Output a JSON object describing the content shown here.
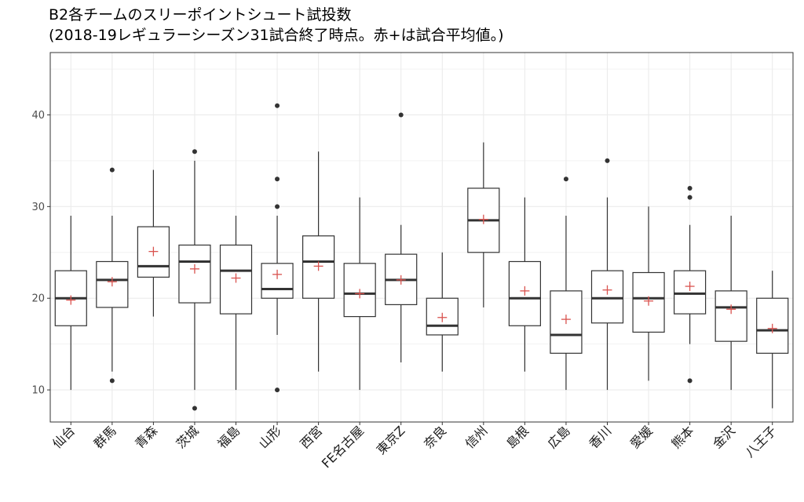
{
  "chart_data": {
    "type": "box",
    "title": "B2各チームのスリーポイントシュート試投数",
    "subtitle": "(2018-19レギュラーシーズン31試合終了時点。赤+は試合平均値。)",
    "xlabel": "",
    "ylabel": "",
    "ylim": [
      6.5,
      46.8
    ],
    "yticks": [
      10,
      20,
      30,
      40
    ],
    "grid": true,
    "colors": {
      "box": "#333333",
      "mean": "#d9534f",
      "grid": "#ebebeb",
      "border": "#333333"
    },
    "categories": [
      "仙台",
      "群馬",
      "青森",
      "茨城",
      "福島",
      "山形",
      "西宮",
      "FE名古屋",
      "東京Z",
      "奈良",
      "信州",
      "島根",
      "広島",
      "香川",
      "愛媛",
      "熊本",
      "金沢",
      "八王子"
    ],
    "boxes": [
      {
        "min": 10,
        "q1": 17,
        "median": 20,
        "q3": 23,
        "max": 29,
        "mean": 19.8,
        "outliers": []
      },
      {
        "min": 12,
        "q1": 19,
        "median": 22,
        "q3": 24,
        "max": 29,
        "mean": 21.8,
        "outliers": [
          34,
          11
        ]
      },
      {
        "min": 18,
        "q1": 22.3,
        "median": 23.5,
        "q3": 27.8,
        "max": 34,
        "mean": 25.1,
        "outliers": []
      },
      {
        "min": 10,
        "q1": 19.5,
        "median": 24,
        "q3": 25.8,
        "max": 35,
        "mean": 23.2,
        "outliers": [
          36,
          8
        ]
      },
      {
        "min": 10,
        "q1": 18.3,
        "median": 23,
        "q3": 25.8,
        "max": 29,
        "mean": 22.2,
        "outliers": []
      },
      {
        "min": 16,
        "q1": 20,
        "median": 21,
        "q3": 23.8,
        "max": 29,
        "mean": 22.6,
        "outliers": [
          41,
          33,
          30,
          10
        ]
      },
      {
        "min": 12,
        "q1": 20,
        "median": 24,
        "q3": 26.8,
        "max": 36,
        "mean": 23.5,
        "outliers": []
      },
      {
        "min": 10,
        "q1": 18,
        "median": 20.5,
        "q3": 23.8,
        "max": 31,
        "mean": 20.5,
        "outliers": []
      },
      {
        "min": 13,
        "q1": 19.3,
        "median": 22,
        "q3": 24.8,
        "max": 28,
        "mean": 22,
        "outliers": [
          40
        ]
      },
      {
        "min": 12,
        "q1": 16,
        "median": 17,
        "q3": 20,
        "max": 25,
        "mean": 17.9,
        "outliers": []
      },
      {
        "min": 19,
        "q1": 25,
        "median": 28.5,
        "q3": 32,
        "max": 37,
        "mean": 28.6,
        "outliers": []
      },
      {
        "min": 12,
        "q1": 17,
        "median": 20,
        "q3": 24,
        "max": 31,
        "mean": 20.8,
        "outliers": []
      },
      {
        "min": 10,
        "q1": 14,
        "median": 16,
        "q3": 20.8,
        "max": 29,
        "mean": 17.7,
        "outliers": [
          33
        ]
      },
      {
        "min": 10,
        "q1": 17.3,
        "median": 20,
        "q3": 23,
        "max": 31,
        "mean": 20.9,
        "outliers": [
          35
        ]
      },
      {
        "min": 11,
        "q1": 16.3,
        "median": 20,
        "q3": 22.8,
        "max": 30,
        "mean": 19.7,
        "outliers": []
      },
      {
        "min": 15,
        "q1": 18.3,
        "median": 20.5,
        "q3": 23,
        "max": 28,
        "mean": 21.3,
        "outliers": [
          32,
          31,
          11
        ]
      },
      {
        "min": 10,
        "q1": 15.3,
        "median": 19,
        "q3": 20.8,
        "max": 29,
        "mean": 18.8,
        "outliers": []
      },
      {
        "min": 8,
        "q1": 14,
        "median": 16.5,
        "q3": 20,
        "max": 23,
        "mean": 16.7,
        "outliers": []
      }
    ]
  }
}
